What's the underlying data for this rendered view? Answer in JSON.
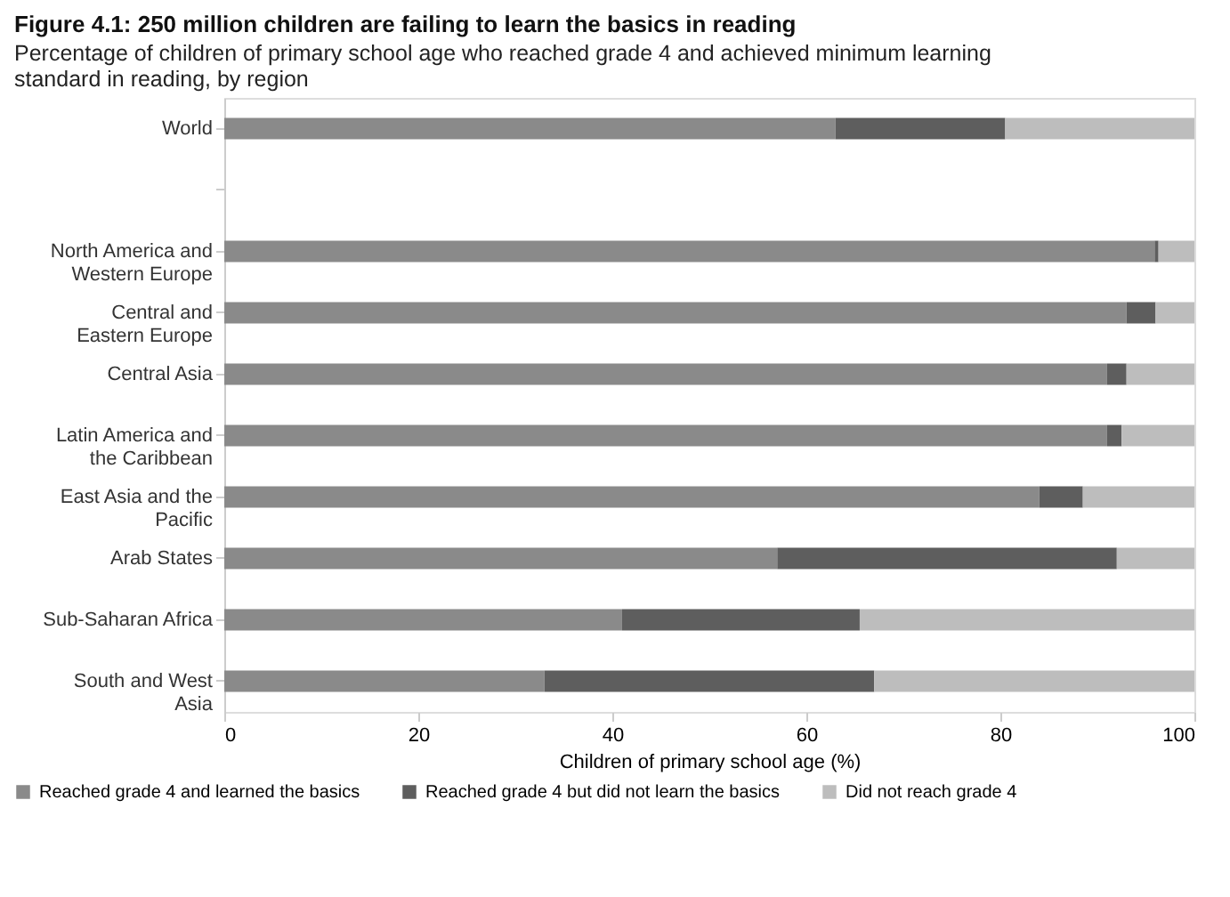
{
  "chart_data": {
    "type": "bar",
    "orientation": "horizontal",
    "stacked": true,
    "title": "Figure 4.1: 250 million children are failing to learn the basics in reading",
    "subtitle": "Percentage of children of primary school age who reached grade 4 and achieved minimum learning standard in reading, by region",
    "xlabel": "Children of primary school age (%)",
    "categories": [
      "World",
      null,
      "North America and Western Europe",
      "Central and Eastern Europe",
      "Central Asia",
      "Latin America and the Caribbean",
      "East Asia and the Pacific",
      "Arab States",
      "Sub-Saharan Africa",
      "South and West Asia"
    ],
    "series": [
      {
        "name": "Reached grade 4 and learned the basics",
        "color": "#8a8a8a",
        "values": [
          63,
          null,
          95.9,
          93,
          91,
          91,
          84,
          57,
          41,
          33
        ]
      },
      {
        "name": "Reached grade 4 but did not learn the basics",
        "color": "#5e5e5e",
        "values": [
          17.5,
          null,
          0.4,
          3,
          2,
          1.5,
          4.5,
          35,
          24.5,
          34
        ]
      },
      {
        "name": "Did not reach grade 4",
        "color": "#bdbdbd",
        "values": [
          19.5,
          null,
          3.7,
          4,
          7,
          7.5,
          11.5,
          8,
          34.5,
          33
        ]
      }
    ],
    "xlim": [
      0,
      100
    ],
    "xticks": [
      0,
      20,
      40,
      60,
      80,
      100
    ],
    "grid": false,
    "legend": "bottom"
  }
}
